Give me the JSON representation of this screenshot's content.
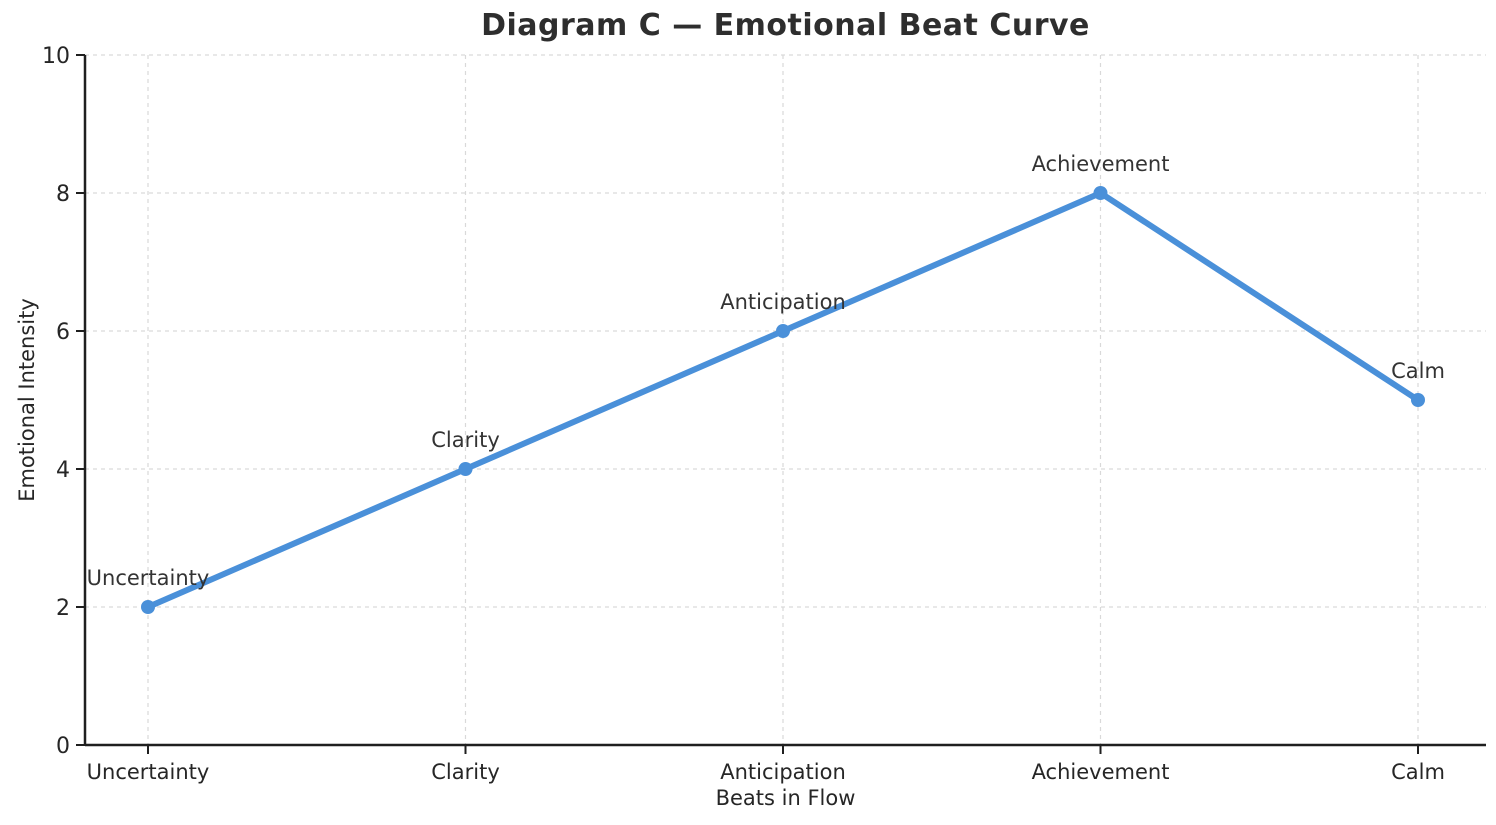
{
  "chart_data": {
    "type": "line",
    "title": "Diagram C — Emotional Beat Curve",
    "xlabel": "Beats in Flow",
    "ylabel": "Emotional Intensity",
    "categories": [
      "Uncertainty",
      "Clarity",
      "Anticipation",
      "Achievement",
      "Calm"
    ],
    "values": [
      2,
      4,
      6,
      8,
      5
    ],
    "point_labels": [
      "Uncertainty",
      "Clarity",
      "Anticipation",
      "Achievement",
      "Calm"
    ],
    "ylim": [
      0,
      10
    ],
    "yticks": [
      0,
      2,
      4,
      6,
      8,
      10
    ],
    "grid": "dashed-both-axes",
    "legend_position": "none",
    "colors": {
      "line": "#4a90d9",
      "marker": "#4a90d9",
      "grid": "#d9d9d9",
      "axis": "#1f1f1f",
      "tick_text": "#262626",
      "annotation_text": "#333333",
      "title_text": "#2e2e2e",
      "background": "#ffffff"
    }
  }
}
